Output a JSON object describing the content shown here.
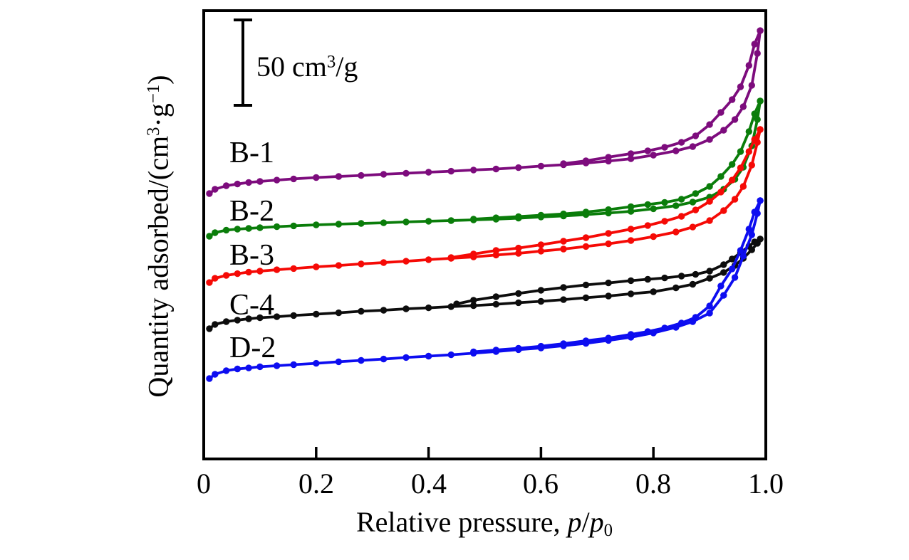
{
  "figure": {
    "scale_bar": {
      "text_pre": "50 cm",
      "text_sup": "3",
      "text_post": "/g",
      "length_units": 50
    }
  },
  "chart_data": {
    "type": "line",
    "title": "",
    "xlabel": "Relative pressure, p/p0",
    "ylabel": "Quantity adsorbed/(cm3·g−1)",
    "xlim": [
      0,
      1.0
    ],
    "grid": false,
    "legend_position": "inline-labels-left",
    "y_scale_note": "No numeric y-axis; vertical scale bar = 50 cm3/g; curves are vertically offset; values below are in cm3/g scale-bar units measured from the bottom axis",
    "x_axis": {
      "title_prefix": "Relative pressure, ",
      "title_p1": "p",
      "title_slash": "/",
      "title_p2": "p",
      "title_sub": "0",
      "ticks": [
        {
          "label": "0",
          "value": 0
        },
        {
          "label": "0.2",
          "value": 0.2
        },
        {
          "label": "0.4",
          "value": 0.4
        },
        {
          "label": "0.6",
          "value": 0.6
        },
        {
          "label": "0.8",
          "value": 0.8
        },
        {
          "label": "1.0",
          "value": 1.0
        }
      ]
    },
    "y_axis": {
      "title_pre": "Quantity adsorbed/(cm",
      "title_sup1": "3",
      "title_mid": "·g",
      "title_sup2": "−1",
      "title_post": ")"
    },
    "series": [
      {
        "name": "B-1",
        "color": "#7d0c7d",
        "adsorption": [
          [
            0.01,
            155.4
          ],
          [
            0.02,
            157.9
          ],
          [
            0.04,
            160.0
          ],
          [
            0.06,
            161.0
          ],
          [
            0.08,
            161.9
          ],
          [
            0.1,
            162.5
          ],
          [
            0.13,
            163.3
          ],
          [
            0.16,
            164.0
          ],
          [
            0.2,
            164.8
          ],
          [
            0.24,
            165.4
          ],
          [
            0.28,
            166.0
          ],
          [
            0.32,
            166.7
          ],
          [
            0.36,
            167.3
          ],
          [
            0.4,
            167.9
          ],
          [
            0.44,
            168.5
          ],
          [
            0.48,
            169.2
          ],
          [
            0.52,
            169.8
          ],
          [
            0.56,
            170.6
          ],
          [
            0.6,
            171.5
          ],
          [
            0.64,
            172.3
          ],
          [
            0.68,
            173.3
          ],
          [
            0.72,
            174.4
          ],
          [
            0.76,
            175.8
          ],
          [
            0.8,
            177.9
          ],
          [
            0.84,
            180.4
          ],
          [
            0.87,
            182.9
          ],
          [
            0.9,
            187.1
          ],
          [
            0.925,
            192.5
          ],
          [
            0.945,
            198.8
          ],
          [
            0.96,
            206.3
          ],
          [
            0.975,
            218.8
          ],
          [
            0.985,
            237.5
          ],
          [
            0.99,
            250.8
          ]
        ],
        "desorption": [
          [
            0.99,
            250.8
          ],
          [
            0.98,
            242.9
          ],
          [
            0.97,
            230.4
          ],
          [
            0.955,
            217.9
          ],
          [
            0.94,
            210.4
          ],
          [
            0.92,
            202.9
          ],
          [
            0.9,
            195.8
          ],
          [
            0.875,
            189.2
          ],
          [
            0.85,
            185.4
          ],
          [
            0.82,
            182.5
          ],
          [
            0.79,
            180.4
          ],
          [
            0.76,
            178.8
          ],
          [
            0.72,
            176.7
          ],
          [
            0.68,
            174.6
          ],
          [
            0.64,
            172.9
          ]
        ]
      },
      {
        "name": "B-2",
        "color": "#0a7d0a",
        "adsorption": [
          [
            0.01,
            130.4
          ],
          [
            0.02,
            132.5
          ],
          [
            0.04,
            134.0
          ],
          [
            0.06,
            134.6
          ],
          [
            0.08,
            135.0
          ],
          [
            0.1,
            135.4
          ],
          [
            0.13,
            136.0
          ],
          [
            0.16,
            136.5
          ],
          [
            0.2,
            137.1
          ],
          [
            0.24,
            137.5
          ],
          [
            0.28,
            137.9
          ],
          [
            0.32,
            138.3
          ],
          [
            0.36,
            138.8
          ],
          [
            0.4,
            139.2
          ],
          [
            0.44,
            139.6
          ],
          [
            0.48,
            140.0
          ],
          [
            0.52,
            140.4
          ],
          [
            0.56,
            141.0
          ],
          [
            0.6,
            141.7
          ],
          [
            0.64,
            142.3
          ],
          [
            0.68,
            143.1
          ],
          [
            0.72,
            144.0
          ],
          [
            0.76,
            145.0
          ],
          [
            0.8,
            146.5
          ],
          [
            0.84,
            148.3
          ],
          [
            0.87,
            150.4
          ],
          [
            0.9,
            153.3
          ],
          [
            0.925,
            157.9
          ],
          [
            0.945,
            163.8
          ],
          [
            0.96,
            170.8
          ],
          [
            0.975,
            183.3
          ],
          [
            0.985,
            198.8
          ],
          [
            0.99,
            209.6
          ]
        ],
        "desorption": [
          [
            0.99,
            209.6
          ],
          [
            0.98,
            202.1
          ],
          [
            0.97,
            191.7
          ],
          [
            0.955,
            180.0
          ],
          [
            0.94,
            172.5
          ],
          [
            0.92,
            165.4
          ],
          [
            0.9,
            159.6
          ],
          [
            0.875,
            155.4
          ],
          [
            0.85,
            152.1
          ],
          [
            0.82,
            150.2
          ],
          [
            0.79,
            149.0
          ],
          [
            0.76,
            147.7
          ],
          [
            0.72,
            146.0
          ],
          [
            0.68,
            144.6
          ],
          [
            0.64,
            143.5
          ],
          [
            0.6,
            142.7
          ],
          [
            0.56,
            141.9
          ],
          [
            0.52,
            141.2
          ],
          [
            0.48,
            140.4
          ]
        ]
      },
      {
        "name": "B-3",
        "color": "#f50a06",
        "adsorption": [
          [
            0.01,
            103.3
          ],
          [
            0.02,
            105.8
          ],
          [
            0.04,
            107.5
          ],
          [
            0.06,
            108.5
          ],
          [
            0.08,
            109.4
          ],
          [
            0.1,
            110.0
          ],
          [
            0.13,
            110.8
          ],
          [
            0.16,
            111.5
          ],
          [
            0.2,
            112.5
          ],
          [
            0.24,
            113.3
          ],
          [
            0.28,
            114.2
          ],
          [
            0.32,
            115.0
          ],
          [
            0.36,
            115.8
          ],
          [
            0.4,
            116.7
          ],
          [
            0.44,
            117.5
          ],
          [
            0.48,
            118.3
          ],
          [
            0.52,
            119.4
          ],
          [
            0.56,
            120.4
          ],
          [
            0.6,
            121.7
          ],
          [
            0.64,
            122.9
          ],
          [
            0.68,
            124.4
          ],
          [
            0.72,
            126.0
          ],
          [
            0.76,
            127.9
          ],
          [
            0.8,
            130.2
          ],
          [
            0.84,
            132.9
          ],
          [
            0.87,
            135.8
          ],
          [
            0.9,
            139.6
          ],
          [
            0.925,
            145.4
          ],
          [
            0.945,
            152.1
          ],
          [
            0.96,
            159.6
          ],
          [
            0.975,
            172.1
          ],
          [
            0.985,
            185.4
          ],
          [
            0.99,
            192.9
          ]
        ],
        "desorption": [
          [
            0.99,
            192.9
          ],
          [
            0.98,
            187.1
          ],
          [
            0.97,
            180.0
          ],
          [
            0.955,
            170.4
          ],
          [
            0.94,
            163.3
          ],
          [
            0.92,
            156.3
          ],
          [
            0.9,
            150.8
          ],
          [
            0.875,
            145.8
          ],
          [
            0.85,
            142.1
          ],
          [
            0.82,
            139.2
          ],
          [
            0.79,
            136.7
          ],
          [
            0.76,
            134.6
          ],
          [
            0.72,
            132.1
          ],
          [
            0.68,
            129.6
          ],
          [
            0.64,
            127.5
          ],
          [
            0.6,
            125.4
          ],
          [
            0.56,
            123.5
          ],
          [
            0.52,
            122.1
          ],
          [
            0.48,
            120.0
          ],
          [
            0.44,
            117.9
          ]
        ]
      },
      {
        "name": "C-4",
        "color": "#0d0d0d",
        "adsorption": [
          [
            0.01,
            76.3
          ],
          [
            0.02,
            78.8
          ],
          [
            0.04,
            80.4
          ],
          [
            0.06,
            81.3
          ],
          [
            0.08,
            82.1
          ],
          [
            0.1,
            82.7
          ],
          [
            0.13,
            83.3
          ],
          [
            0.16,
            84.0
          ],
          [
            0.2,
            84.8
          ],
          [
            0.24,
            85.6
          ],
          [
            0.28,
            86.5
          ],
          [
            0.32,
            87.1
          ],
          [
            0.36,
            87.9
          ],
          [
            0.4,
            88.5
          ],
          [
            0.44,
            89.2
          ],
          [
            0.48,
            89.8
          ],
          [
            0.52,
            90.6
          ],
          [
            0.56,
            91.5
          ],
          [
            0.6,
            92.3
          ],
          [
            0.64,
            93.3
          ],
          [
            0.68,
            94.4
          ],
          [
            0.72,
            95.4
          ],
          [
            0.76,
            96.7
          ],
          [
            0.8,
            97.9
          ],
          [
            0.84,
            100.2
          ],
          [
            0.87,
            102.3
          ],
          [
            0.9,
            105.8
          ],
          [
            0.925,
            109.2
          ],
          [
            0.945,
            113.3
          ],
          [
            0.96,
            117.5
          ],
          [
            0.975,
            122.5
          ],
          [
            0.985,
            126.3
          ],
          [
            0.99,
            128.8
          ]
        ],
        "desorption": [
          [
            0.99,
            128.8
          ],
          [
            0.98,
            127.1
          ],
          [
            0.97,
            124.6
          ],
          [
            0.955,
            120.8
          ],
          [
            0.94,
            117.1
          ],
          [
            0.925,
            113.8
          ],
          [
            0.9,
            110.0
          ],
          [
            0.875,
            108.1
          ],
          [
            0.85,
            107.1
          ],
          [
            0.82,
            106.0
          ],
          [
            0.79,
            105.2
          ],
          [
            0.76,
            104.4
          ],
          [
            0.72,
            103.1
          ],
          [
            0.68,
            101.9
          ],
          [
            0.64,
            100.4
          ],
          [
            0.6,
            98.8
          ],
          [
            0.56,
            96.9
          ],
          [
            0.52,
            95.0
          ],
          [
            0.48,
            92.9
          ],
          [
            0.45,
            90.8
          ]
        ]
      },
      {
        "name": "D-2",
        "color": "#0d0df0",
        "adsorption": [
          [
            0.01,
            47.1
          ],
          [
            0.02,
            49.6
          ],
          [
            0.04,
            51.7
          ],
          [
            0.06,
            52.7
          ],
          [
            0.08,
            53.3
          ],
          [
            0.1,
            54.0
          ],
          [
            0.13,
            54.6
          ],
          [
            0.16,
            55.2
          ],
          [
            0.2,
            56.0
          ],
          [
            0.24,
            56.9
          ],
          [
            0.28,
            57.7
          ],
          [
            0.32,
            58.5
          ],
          [
            0.36,
            59.4
          ],
          [
            0.4,
            60.2
          ],
          [
            0.44,
            61.0
          ],
          [
            0.48,
            61.9
          ],
          [
            0.52,
            62.9
          ],
          [
            0.56,
            64.0
          ],
          [
            0.6,
            65.0
          ],
          [
            0.64,
            66.3
          ],
          [
            0.68,
            67.7
          ],
          [
            0.72,
            69.4
          ],
          [
            0.76,
            71.3
          ],
          [
            0.8,
            73.8
          ],
          [
            0.84,
            77.1
          ],
          [
            0.87,
            80.4
          ],
          [
            0.9,
            85.4
          ],
          [
            0.925,
            95.8
          ],
          [
            0.945,
            106.3
          ],
          [
            0.96,
            118.8
          ],
          [
            0.975,
            131.3
          ],
          [
            0.985,
            143.8
          ],
          [
            0.99,
            151.3
          ]
        ],
        "desorption": [
          [
            0.99,
            151.3
          ],
          [
            0.98,
            144.6
          ],
          [
            0.97,
            134.6
          ],
          [
            0.955,
            122.1
          ],
          [
            0.94,
            111.3
          ],
          [
            0.92,
            101.3
          ],
          [
            0.9,
            89.6
          ],
          [
            0.875,
            82.9
          ],
          [
            0.85,
            79.6
          ],
          [
            0.82,
            76.7
          ],
          [
            0.79,
            74.6
          ],
          [
            0.76,
            72.9
          ],
          [
            0.72,
            70.8
          ],
          [
            0.68,
            69.2
          ],
          [
            0.64,
            67.5
          ],
          [
            0.6,
            66.0
          ],
          [
            0.56,
            64.8
          ],
          [
            0.52,
            63.8
          ],
          [
            0.48,
            62.7
          ]
        ]
      }
    ]
  }
}
